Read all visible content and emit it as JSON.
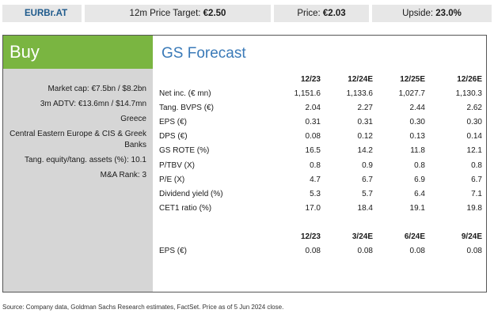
{
  "header": {
    "ticker": "EURBr.AT",
    "target_label": "12m Price Target: ",
    "target_value": "€2.50",
    "price_label": "Price: ",
    "price_value": "€2.03",
    "upside_label": "Upside: ",
    "upside_value": "23.0%"
  },
  "rating": "Buy",
  "facts": [
    "Market cap: €7.5bn / $8.2bn",
    "3m ADTV: €13.6mn / $14.7mn",
    "Greece",
    "Central Eastern Europe & CIS & Greek Banks",
    "Tang. equity/tang. assets (%): 10.1",
    "M&A Rank: 3"
  ],
  "forecast": {
    "title": "GS Forecast",
    "columns": [
      "12/23",
      "12/24E",
      "12/25E",
      "12/26E"
    ],
    "rows": [
      {
        "label": "Net inc. (€ mn)",
        "values": [
          "1,151.6",
          "1,133.6",
          "1,027.7",
          "1,130.3"
        ]
      },
      {
        "label": "Tang. BVPS (€)",
        "values": [
          "2.04",
          "2.27",
          "2.44",
          "2.62"
        ]
      },
      {
        "label": "EPS (€)",
        "values": [
          "0.31",
          "0.31",
          "0.30",
          "0.30"
        ]
      },
      {
        "label": "DPS (€)",
        "values": [
          "0.08",
          "0.12",
          "0.13",
          "0.14"
        ]
      },
      {
        "label": "GS ROTE (%)",
        "values": [
          "16.5",
          "14.2",
          "11.8",
          "12.1"
        ]
      },
      {
        "label": "P/TBV (X)",
        "values": [
          "0.8",
          "0.9",
          "0.8",
          "0.8"
        ]
      },
      {
        "label": "P/E (X)",
        "values": [
          "4.7",
          "6.7",
          "6.9",
          "6.7"
        ]
      },
      {
        "label": "Dividend yield (%)",
        "values": [
          "5.3",
          "5.7",
          "6.4",
          "7.1"
        ]
      },
      {
        "label": "CET1 ratio (%)",
        "values": [
          "17.0",
          "18.4",
          "19.1",
          "19.8"
        ]
      }
    ]
  },
  "quarterly": {
    "columns": [
      "12/23",
      "3/24E",
      "6/24E",
      "9/24E"
    ],
    "rows": [
      {
        "label": "EPS (€)",
        "values": [
          "0.08",
          "0.08",
          "0.08",
          "0.08"
        ]
      }
    ]
  },
  "source": "Source: Company data, Goldman Sachs Research estimates, FactSet. Price as of 5 Jun 2024 close.",
  "colors": {
    "buy_green": "#7ab541",
    "title_blue": "#3a7ab8",
    "ticker_blue": "#1e5a8c",
    "panel_gray": "#d6d6d6",
    "topbar_gray": "#e7e7e7"
  }
}
